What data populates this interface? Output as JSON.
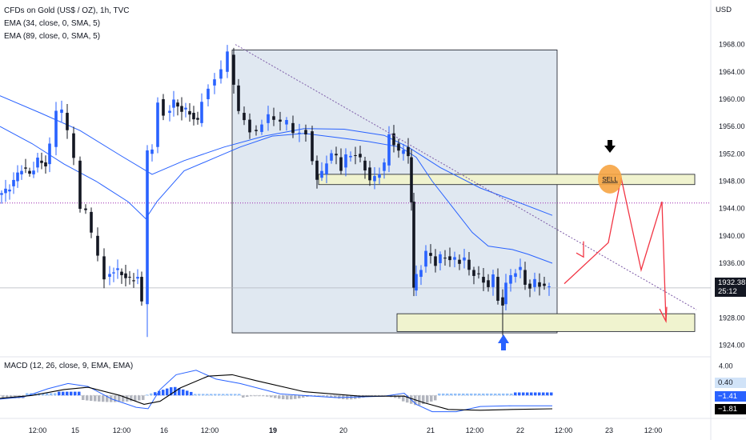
{
  "header": {
    "title": "CFDs on Gold (US$ / OZ), 1h, TVC",
    "ema1": "EMA (34, close, 0, SMA, 5)",
    "ema2": "EMA (89, close, 0, SMA, 5)",
    "macd": "MACD (12, 26, close, 9, EMA, EMA)",
    "currency": "USD"
  },
  "price_badge": {
    "price": "1932.38",
    "countdown": "25:12",
    "color": "#131722"
  },
  "macd_badges": [
    {
      "value": "0.40",
      "bg": "#d1e3f8",
      "fg": "#131722"
    },
    {
      "value": "−1.41",
      "bg": "#2962ff",
      "fg": "#ffffff"
    },
    {
      "value": "−1.81",
      "bg": "#000000",
      "fg": "#ffffff"
    }
  ],
  "annotation": {
    "sell_label": "SELL"
  },
  "colors": {
    "up_candle": "#2962ff",
    "down_candle": "#131722",
    "ema": "#2962ff",
    "zone_fill": "#f0f3cf",
    "box_fill": "#dde5f0",
    "projection": "#f23645",
    "sell_circle": "#f6a443",
    "trendline": "#7d5ca8"
  },
  "chart_data": {
    "type": "candlestick",
    "ylim": [
      1923,
      1971
    ],
    "yticks": [
      1968,
      1964,
      1960,
      1956,
      1952,
      1948,
      1944,
      1940,
      1936,
      1932,
      1928,
      1924
    ],
    "ytick_labels": [
      "1968.00",
      "1964.00",
      "1960.00",
      "1956.00",
      "1952.00",
      "1948.00",
      "1944.00",
      "1940.00",
      "1936.00",
      "1928.00",
      "1924.00"
    ],
    "xtick_labels": [
      "12:00",
      "15",
      "12:00",
      "16",
      "12:00",
      "19",
      "20",
      "21",
      "12:00",
      "22",
      "12:00",
      "23",
      "12:00"
    ],
    "key_prices": {
      "sell_zone": [
        1947.5,
        1949
      ],
      "buy_zone": [
        1926,
        1928.6
      ],
      "dotted_level": 1944.8,
      "current": 1932.38
    },
    "projection_path": [
      1933,
      1939,
      1948.5,
      1935,
      1945,
      1927.5
    ],
    "macd": {
      "ylim": [
        -3,
        5
      ],
      "yticks": [
        4.0,
        0.4
      ],
      "yticks_labels": [
        "4.00",
        "0.40"
      ],
      "current": {
        "histogram": 0.4,
        "macd": -1.41,
        "signal": -1.81
      }
    }
  }
}
